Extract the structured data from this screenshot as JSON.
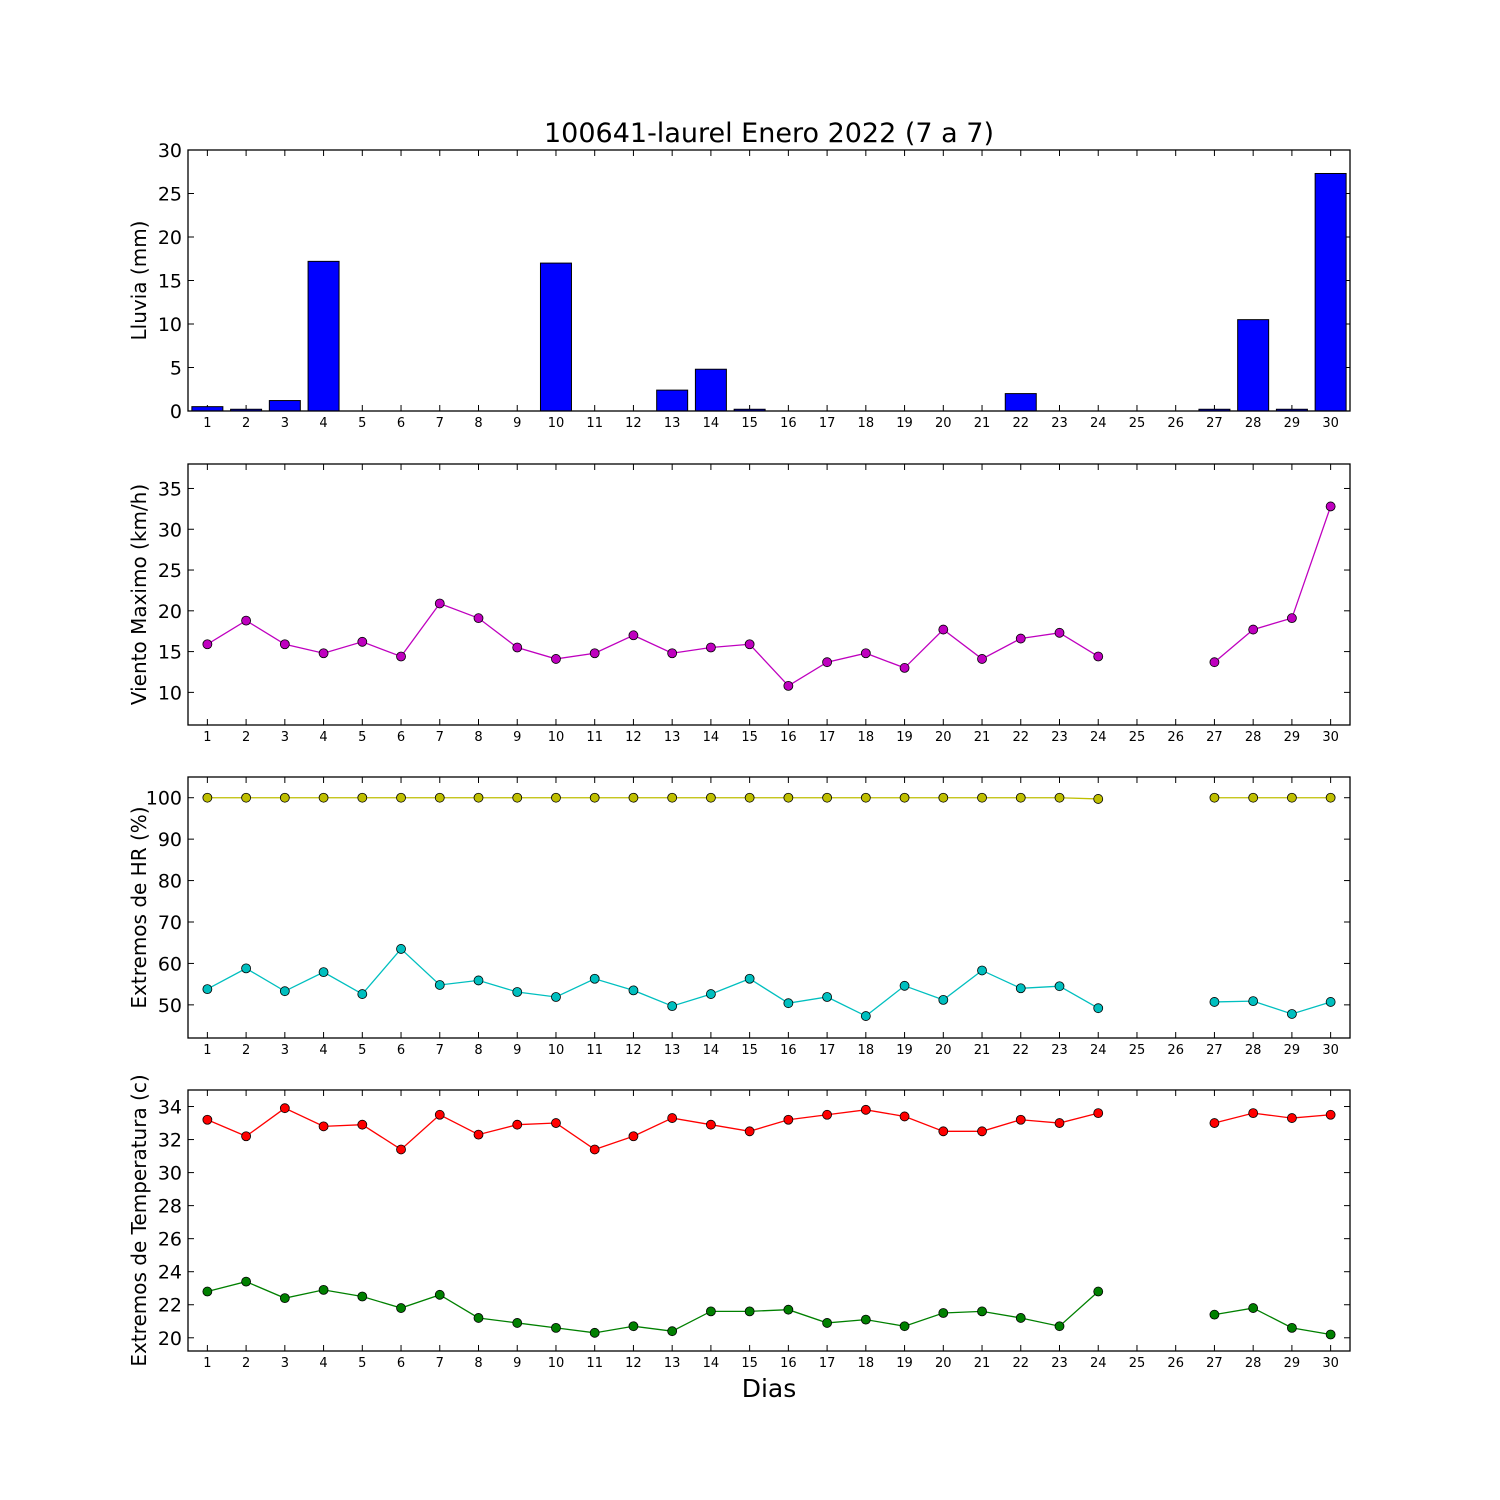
{
  "title": "100641-laurel Enero 2022  (7 a 7)",
  "xlabel": "Dias",
  "days": [
    1,
    2,
    3,
    4,
    5,
    6,
    7,
    8,
    9,
    10,
    11,
    12,
    13,
    14,
    15,
    16,
    17,
    18,
    19,
    20,
    21,
    22,
    23,
    24,
    25,
    26,
    27,
    28,
    29,
    30
  ],
  "chart_data": [
    {
      "type": "bar",
      "ylabel": "Lluvia (mm)",
      "ylim": [
        0,
        30
      ],
      "yticks": [
        0,
        5,
        10,
        15,
        20,
        25,
        30
      ],
      "series": [
        {
          "color": "#0000ff",
          "values": [
            0.5,
            0.2,
            1.2,
            17.2,
            0,
            0,
            0,
            0,
            0,
            17.0,
            0,
            0,
            2.4,
            4.8,
            0.2,
            0,
            0,
            0,
            0,
            0,
            0,
            2.0,
            0,
            0,
            0,
            0,
            0.2,
            10.5,
            0.2,
            27.3
          ]
        }
      ]
    },
    {
      "type": "line",
      "ylabel": "Viento Maximo (km/h)",
      "ylim": [
        6,
        38
      ],
      "yticks": [
        10,
        15,
        20,
        25,
        30,
        35
      ],
      "series": [
        {
          "color": "#bf00bf",
          "values": [
            15.9,
            18.8,
            15.9,
            14.8,
            16.2,
            14.4,
            20.9,
            19.1,
            15.5,
            14.1,
            14.8,
            17.0,
            14.8,
            15.5,
            15.9,
            10.8,
            13.7,
            14.8,
            13.0,
            17.7,
            14.1,
            16.6,
            17.3,
            14.4,
            null,
            null,
            13.7,
            17.7,
            19.1,
            32.8
          ]
        }
      ]
    },
    {
      "type": "line",
      "ylabel": "Extremos de HR (%)",
      "ylim": [
        42,
        105
      ],
      "yticks": [
        50,
        60,
        70,
        80,
        90,
        100
      ],
      "series": [
        {
          "color": "#bfbf00",
          "values": [
            100,
            100,
            100,
            100,
            100,
            100,
            100,
            100,
            100,
            100,
            100,
            100,
            100,
            100,
            100,
            100,
            100,
            100,
            100,
            100,
            100,
            100,
            100,
            99.7,
            null,
            null,
            100,
            100,
            100,
            100
          ]
        },
        {
          "color": "#00bfbf",
          "values": [
            53.8,
            58.8,
            53.3,
            57.9,
            52.6,
            63.5,
            54.8,
            55.9,
            53.1,
            51.9,
            56.3,
            53.5,
            49.7,
            52.6,
            56.3,
            50.4,
            51.9,
            47.3,
            54.6,
            51.2,
            58.3,
            54.0,
            54.5,
            49.2,
            null,
            null,
            50.7,
            50.9,
            47.8,
            50.7
          ]
        }
      ]
    },
    {
      "type": "line",
      "ylabel": "Extremos de Temperatura (c)",
      "ylim": [
        19.2,
        35
      ],
      "yticks": [
        20,
        22,
        24,
        26,
        28,
        30,
        32,
        34
      ],
      "series": [
        {
          "color": "#ff0000",
          "values": [
            33.2,
            32.2,
            33.9,
            32.8,
            32.9,
            31.4,
            33.5,
            32.3,
            32.9,
            33.0,
            31.4,
            32.2,
            33.3,
            32.9,
            32.5,
            33.2,
            33.5,
            33.8,
            33.4,
            32.5,
            32.5,
            33.2,
            33.0,
            33.6,
            null,
            null,
            33.0,
            33.6,
            33.3,
            33.5
          ]
        },
        {
          "color": "#008000",
          "values": [
            22.8,
            23.4,
            22.4,
            22.9,
            22.5,
            21.8,
            22.6,
            21.2,
            20.9,
            20.6,
            20.3,
            20.7,
            20.4,
            21.6,
            21.6,
            21.7,
            20.9,
            21.1,
            20.7,
            21.5,
            21.6,
            21.2,
            20.7,
            22.8,
            null,
            null,
            21.4,
            21.8,
            20.6,
            20.2
          ]
        }
      ]
    }
  ]
}
